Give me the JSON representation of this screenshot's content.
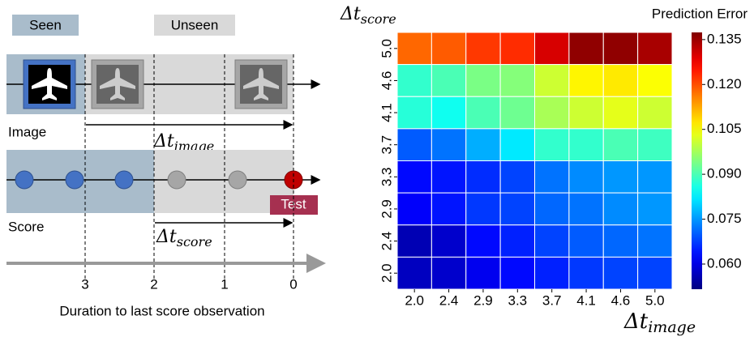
{
  "diagram": {
    "seen": "Seen",
    "unseen": "Unseen",
    "image_label": "Image",
    "score_label": "Score",
    "test": "Test",
    "dt_image": [
      "Δt",
      "image"
    ],
    "dt_score": [
      "Δt",
      "score"
    ],
    "timeline_ticks": [
      "3",
      "2",
      "1",
      "0"
    ],
    "timeline_label": "Duration to last score observation"
  },
  "chart_data": {
    "type": "heatmap",
    "title": "Prediction Error",
    "xlabel": [
      "Δt",
      "image"
    ],
    "ylabel": [
      "Δt",
      "score"
    ],
    "categories": [
      "2.0",
      "2.4",
      "2.9",
      "3.3",
      "3.7",
      "4.1",
      "4.6",
      "5.0"
    ],
    "ycategories": [
      "5.0",
      "4.6",
      "4.1",
      "3.7",
      "3.3",
      "2.9",
      "2.4",
      "2.0"
    ],
    "z": [
      [
        0.118,
        0.119,
        0.122,
        0.123,
        0.13,
        0.136,
        0.136,
        0.134
      ],
      [
        0.088,
        0.09,
        0.094,
        0.095,
        0.101,
        0.106,
        0.107,
        0.105
      ],
      [
        0.087,
        0.085,
        0.09,
        0.093,
        0.098,
        0.101,
        0.103,
        0.101
      ],
      [
        0.07,
        0.072,
        0.077,
        0.082,
        0.088,
        0.088,
        0.09,
        0.089
      ],
      [
        0.063,
        0.064,
        0.066,
        0.068,
        0.072,
        0.074,
        0.075,
        0.075
      ],
      [
        0.062,
        0.064,
        0.067,
        0.068,
        0.071,
        0.072,
        0.074,
        0.075
      ],
      [
        0.056,
        0.058,
        0.063,
        0.065,
        0.068,
        0.07,
        0.071,
        0.072
      ],
      [
        0.057,
        0.058,
        0.061,
        0.063,
        0.065,
        0.067,
        0.068,
        0.068
      ]
    ],
    "colormap": "jet",
    "zlim": [
      0.0516,
      0.1374
    ],
    "zticks": [
      {
        "value": 0.06,
        "label": "0.060"
      },
      {
        "value": 0.075,
        "label": "0.075"
      },
      {
        "value": 0.09,
        "label": "0.090"
      },
      {
        "value": 0.105,
        "label": "0.105"
      },
      {
        "value": 0.12,
        "label": "0.120"
      },
      {
        "value": 0.135,
        "label": "0.135"
      }
    ]
  }
}
